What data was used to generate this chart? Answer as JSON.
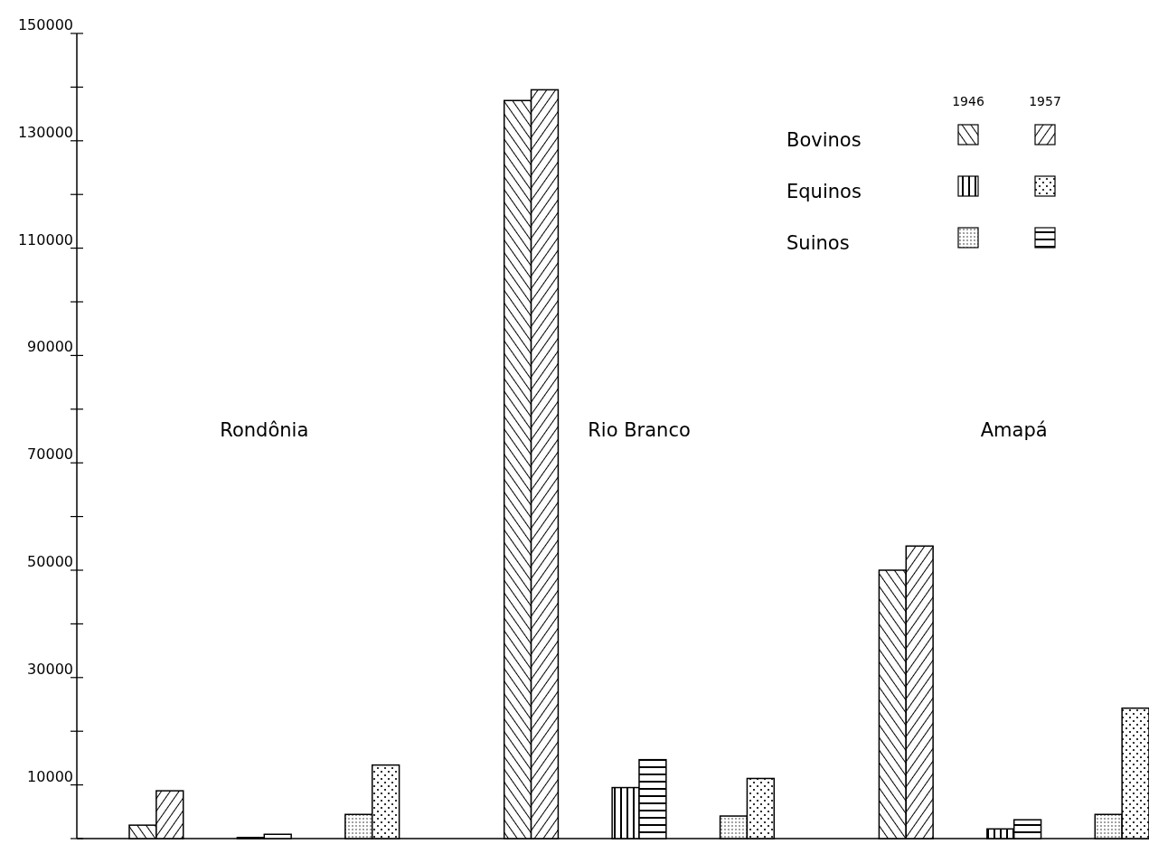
{
  "chart_data": {
    "type": "bar",
    "categories": [
      "Rondônia",
      "Rio Branco",
      "Amapá"
    ],
    "series": [
      {
        "color": "#000000",
        "values": [
          2500,
          137500,
          50000
        ]
      },
      {
        "color": "#000000",
        "values": [
          8900,
          139500,
          54500
        ]
      },
      {
        "color": "#000000",
        "values": [
          200,
          9500,
          1800
        ]
      },
      {
        "color": "#000000",
        "values": [
          800,
          14700,
          3500
        ]
      },
      {
        "color": "#000000",
        "values": [
          4500,
          4200,
          4500
        ]
      },
      {
        "color": "#000000",
        "values": [
          13700,
          11200,
          24300
        ]
      }
    ],
    "annotations": [
      "1946",
      "1957",
      "Bovinos",
      "Equinos",
      "Suinos"
    ],
    "ylim": [
      0,
      150000
    ],
    "yticks": [
      {
        "value": 0,
        "label": null
      },
      10000,
      {
        "value": 20000,
        "label": null
      },
      30000,
      {
        "value": 40000,
        "label": null
      },
      50000,
      {
        "value": 60000,
        "label": null
      },
      70000,
      {
        "value": 80000,
        "label": null
      },
      90000,
      {
        "value": 100000,
        "label": null
      },
      110000,
      {
        "value": 120000,
        "label": null
      },
      130000,
      {
        "value": 140000,
        "label": null
      },
      150000
    ],
    "grid": false
  }
}
